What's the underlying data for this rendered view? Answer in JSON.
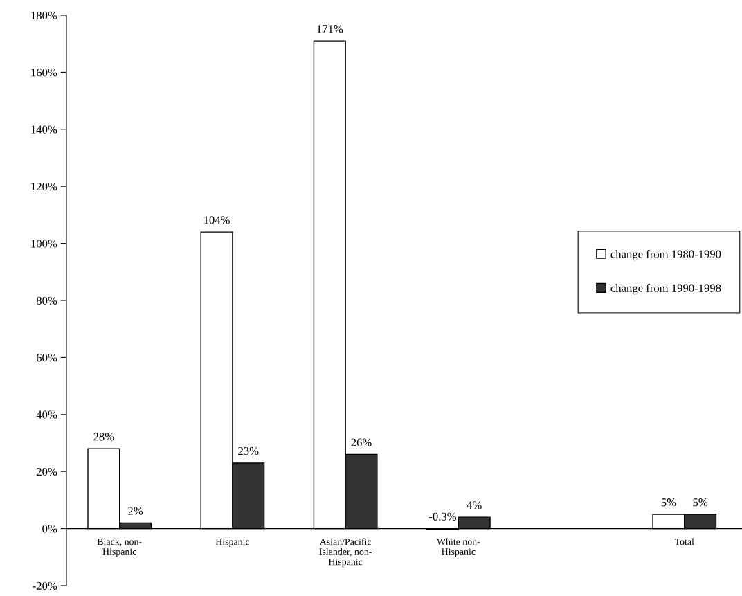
{
  "chart_data": {
    "type": "bar",
    "categories": [
      "Black, non-\nHispanic",
      "Hispanic",
      "Asian/Pacific\nIslander, non-\nHispanic",
      "White non-\nHispanic",
      null,
      "Total"
    ],
    "series": [
      {
        "name": "change from 1980-1990",
        "color": "#ffffff",
        "values": [
          28,
          104,
          171,
          -0.3,
          null,
          5
        ],
        "value_labels": [
          "28%",
          "104%",
          "171%",
          "-0.3%",
          null,
          "5%"
        ]
      },
      {
        "name": "change from 1990-1998",
        "color": "#333333",
        "values": [
          2,
          23,
          26,
          4,
          null,
          5
        ],
        "value_labels": [
          "2%",
          "23%",
          "26%",
          "4%",
          null,
          "5%"
        ]
      }
    ],
    "ylim": [
      -20,
      180
    ],
    "yticks": [
      {
        "value": -20,
        "label": "-20%"
      },
      {
        "value": 0,
        "label": "0%"
      },
      {
        "value": 20,
        "label": "20%"
      },
      {
        "value": 40,
        "label": "40%"
      },
      {
        "value": 60,
        "label": "60%"
      },
      {
        "value": 80,
        "label": "80%"
      },
      {
        "value": 100,
        "label": "100%"
      },
      {
        "value": 120,
        "label": "120%"
      },
      {
        "value": 140,
        "label": "140%"
      },
      {
        "value": 160,
        "label": "160%"
      },
      {
        "value": 180,
        "label": "180%"
      }
    ],
    "grid": false,
    "legend": "right"
  }
}
